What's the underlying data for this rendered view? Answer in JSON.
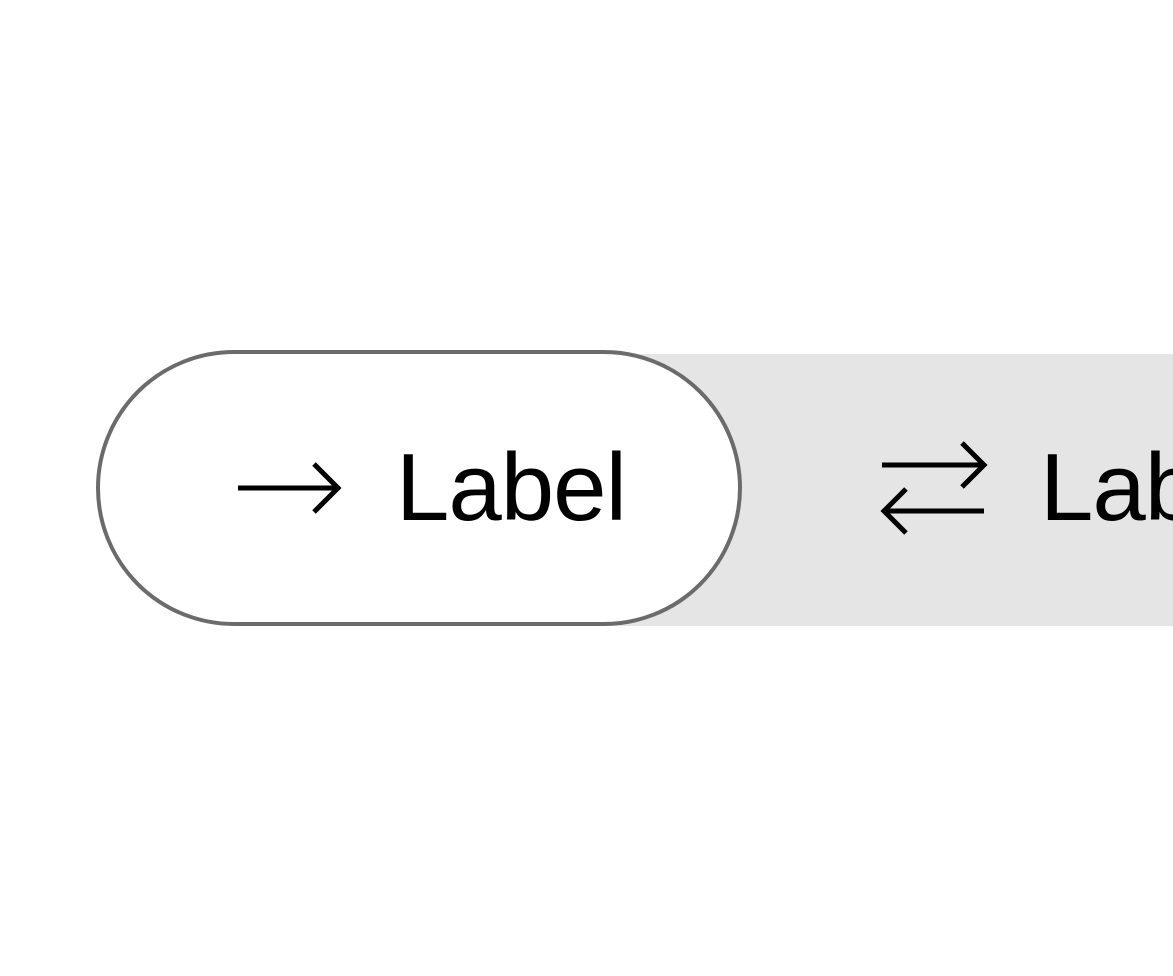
{
  "segmented_control": {
    "segments": [
      {
        "label": "Label",
        "icon": "arrow-right-icon",
        "selected": true
      },
      {
        "label": "Label",
        "icon": "swap-arrows-icon",
        "selected": false
      }
    ]
  },
  "colors": {
    "selected_background": "#ffffff",
    "selected_border": "#6b6b6b",
    "track_background": "#e5e5e5",
    "text": "#000000"
  }
}
